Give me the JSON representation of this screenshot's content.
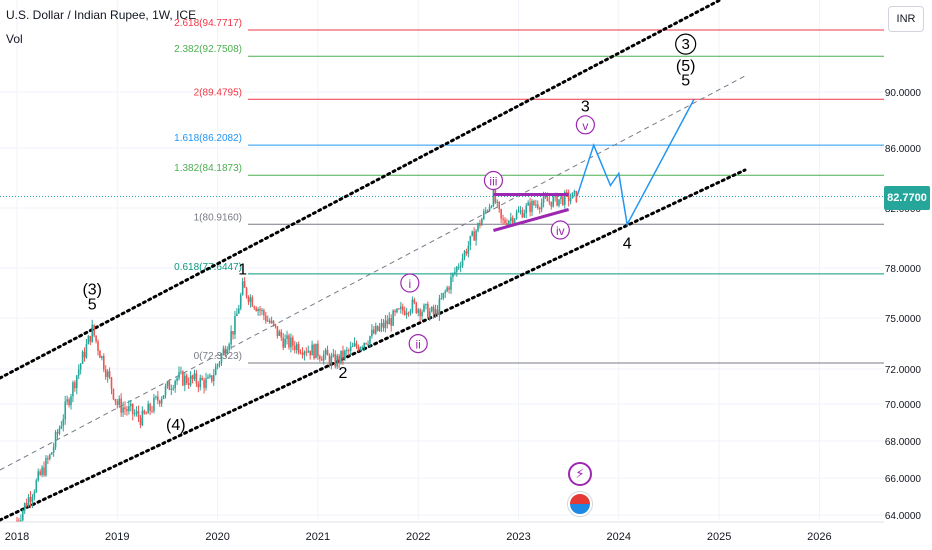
{
  "header": {
    "title": "U.S. Dollar / Indian Rupee, 1W, ICE",
    "indicator": "Vol"
  },
  "currency_button": "INR",
  "last_price_label": "82.7700",
  "icons": {
    "lightning": "lightning-icon",
    "flag": "us-flag-icon"
  },
  "colors": {
    "up": "#26a69a",
    "down": "#ef5350",
    "wave": "#2196f3",
    "triangle": "#9c27b0",
    "channel": "#000000"
  },
  "chart_data": {
    "type": "candlestick",
    "symbol": "USDINR",
    "timeframe": "1W",
    "x_ticks": [
      "2018",
      "2019",
      "2020",
      "2021",
      "2022",
      "2023",
      "2024",
      "2025",
      "2026"
    ],
    "y_ticks": [
      "64.0000",
      "66.0000",
      "68.0000",
      "70.0000",
      "72.0000",
      "75.0000",
      "78.0000",
      "82.0000",
      "86.0000",
      "90.0000"
    ],
    "last_price": 82.77,
    "fib_levels": [
      {
        "label": "2.618(94.7717)",
        "value": 94.7717,
        "color": "#f23645"
      },
      {
        "label": "2.382(92.7508)",
        "value": 92.7508,
        "color": "#4caf50"
      },
      {
        "label": "2(89.4795)",
        "value": 89.4795,
        "color": "#f23645"
      },
      {
        "label": "1.618(86.2082)",
        "value": 86.2082,
        "color": "#2196f3"
      },
      {
        "label": "1.382(84.1873)",
        "value": 84.1873,
        "color": "#4caf50"
      },
      {
        "label": "1(80.9160)",
        "value": 80.916,
        "color": "#787b86"
      },
      {
        "label": "0.618(77.6447)",
        "value": 77.6447,
        "color": "#089981"
      },
      {
        "label": "0(72.3523)",
        "value": 72.3523,
        "color": "#787b86"
      }
    ],
    "price_path": [
      {
        "date": "2018-01",
        "price": 63.7
      },
      {
        "date": "2018-05",
        "price": 67.2
      },
      {
        "date": "2018-10",
        "price": 74.3
      },
      {
        "date": "2019-01",
        "price": 70.0
      },
      {
        "date": "2019-04",
        "price": 69.2
      },
      {
        "date": "2019-08",
        "price": 71.5
      },
      {
        "date": "2019-12",
        "price": 71.2
      },
      {
        "date": "2020-03",
        "price": 74.5
      },
      {
        "date": "2020-04",
        "price": 76.8
      },
      {
        "date": "2020-09",
        "price": 73.6
      },
      {
        "date": "2021-01",
        "price": 73.0
      },
      {
        "date": "2021-03",
        "price": 72.4
      },
      {
        "date": "2021-08",
        "price": 74.2
      },
      {
        "date": "2021-12",
        "price": 75.8
      },
      {
        "date": "2022-03",
        "price": 75.2
      },
      {
        "date": "2022-07",
        "price": 79.5
      },
      {
        "date": "2022-10",
        "price": 82.8
      },
      {
        "date": "2022-11",
        "price": 81.0
      },
      {
        "date": "2023-03",
        "price": 82.3
      },
      {
        "date": "2023-08",
        "price": 82.77
      }
    ],
    "projection": [
      {
        "date": "2023-08",
        "price": 82.77
      },
      {
        "date": "2023-10",
        "price": 86.2
      },
      {
        "date": "2023-12",
        "price": 83.5
      },
      {
        "date": "2024-01",
        "price": 84.3
      },
      {
        "date": "2024-02",
        "price": 80.9
      },
      {
        "date": "2024-10",
        "price": 89.48
      }
    ],
    "triangle": {
      "upper": [
        {
          "date": "2022-10",
          "price": 82.9
        },
        {
          "date": "2023-07",
          "price": 82.9
        }
      ],
      "lower": [
        {
          "date": "2022-10",
          "price": 80.5
        },
        {
          "date": "2023-07",
          "price": 81.9
        }
      ]
    },
    "wave_labels": [
      {
        "text": "(3)",
        "date": "2018-10",
        "price": 76.4,
        "style": "plain"
      },
      {
        "text": "5",
        "date": "2018-10",
        "price": 75.5,
        "style": "plain"
      },
      {
        "text": "(4)",
        "date": "2019-08",
        "price": 68.6,
        "style": "plain"
      },
      {
        "text": "1",
        "date": "2020-04",
        "price": 77.6,
        "style": "plain"
      },
      {
        "text": "2",
        "date": "2021-04",
        "price": 71.5,
        "style": "plain"
      },
      {
        "text": "i",
        "date": "2021-12",
        "price": 76.8,
        "style": "circled"
      },
      {
        "text": "ii",
        "date": "2022-01",
        "price": 73.2,
        "style": "circled"
      },
      {
        "text": "iii",
        "date": "2022-10",
        "price": 83.5,
        "style": "circled"
      },
      {
        "text": "iv",
        "date": "2023-06",
        "price": 80.2,
        "style": "circled"
      },
      {
        "text": "v",
        "date": "2023-09",
        "price": 87.3,
        "style": "circled"
      },
      {
        "text": "3",
        "date": "2023-09",
        "price": 88.6,
        "style": "plain"
      },
      {
        "text": "4",
        "date": "2024-02",
        "price": 79.3,
        "style": "plain"
      },
      {
        "text": "(5)",
        "date": "2024-09",
        "price": 91.6,
        "style": "plain"
      },
      {
        "text": "5",
        "date": "2024-09",
        "price": 90.5,
        "style": "plain"
      },
      {
        "text": "3",
        "date": "2024-09",
        "price": 93.3,
        "style": "circled-bold"
      }
    ]
  }
}
